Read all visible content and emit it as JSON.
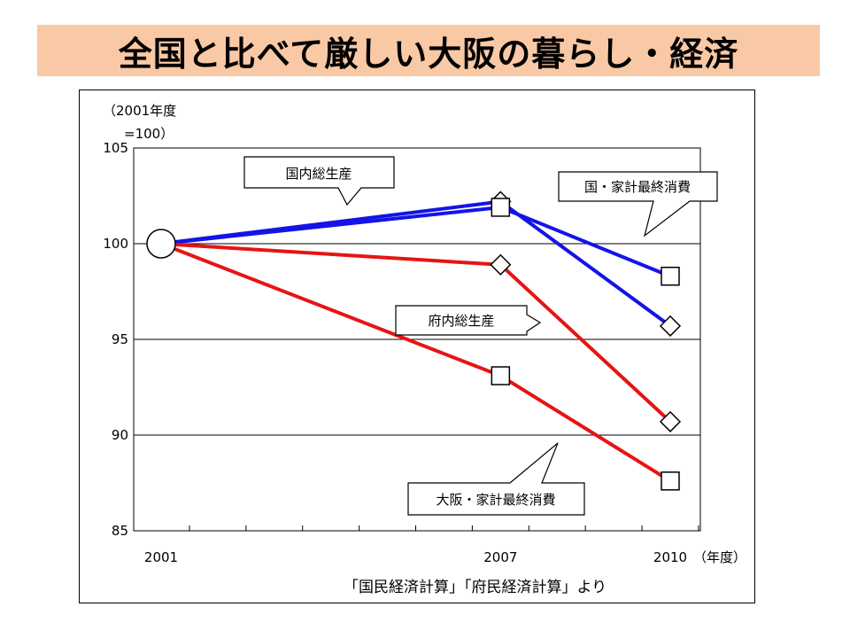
{
  "page": {
    "title": "全国と比べて厳しい大阪の暮らし・経済",
    "banner_color": "#f9c9a5"
  },
  "chart_data": {
    "type": "line",
    "ylabel_line1": "（2001年度",
    "ylabel_line2": "=100）",
    "xlabel": "（年度）",
    "x": [
      2001,
      2007,
      2010
    ],
    "x_tick_labels": [
      "2001",
      "2007",
      "2010"
    ],
    "ylim": [
      85,
      105
    ],
    "y_ticks": [
      85,
      90,
      95,
      100,
      105
    ],
    "y_tick_labels": [
      "85",
      "90",
      "95",
      "100",
      "105"
    ],
    "grid": true,
    "series": [
      {
        "name": "国内総生産",
        "color": "#1414e6",
        "marker": "diamond",
        "values": [
          100,
          102.2,
          95.7
        ]
      },
      {
        "name": "国・家計最終消費",
        "color": "#1414e6",
        "marker": "square",
        "values": [
          100,
          101.9,
          98.3
        ]
      },
      {
        "name": "府内総生産",
        "color": "#e61414",
        "marker": "diamond",
        "values": [
          100,
          98.9,
          90.7
        ]
      },
      {
        "name": "大阪・家計最終消費",
        "color": "#e61414",
        "marker": "square",
        "values": [
          100,
          93.1,
          87.6
        ]
      }
    ],
    "origin_marker": "circle",
    "source": "「国民経済計算」「府民経済計算」より"
  }
}
